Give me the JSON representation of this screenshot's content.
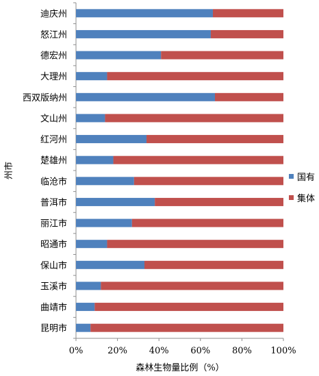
{
  "chart_data": {
    "type": "bar",
    "orientation": "horizontal",
    "stacked": "percent",
    "xlabel": "森林生物量比例（%）",
    "ylabel": "州市",
    "xlim": [
      0,
      100
    ],
    "x_ticks": [
      "0%",
      "20%",
      "40%",
      "60%",
      "80%",
      "100%"
    ],
    "grid": false,
    "legend_position": "right",
    "categories": [
      "迪庆州",
      "怒江州",
      "德宏州",
      "大理州",
      "西双版纳州",
      "文山州",
      "红河州",
      "楚雄州",
      "临沧市",
      "普洱市",
      "丽江市",
      "昭通市",
      "保山市",
      "玉溪市",
      "曲靖市",
      "昆明市"
    ],
    "series": [
      {
        "name": "国有",
        "color": "#4f81bd",
        "values": [
          66,
          65,
          41,
          15,
          67,
          14,
          34,
          18,
          28,
          38,
          27,
          15,
          33,
          12,
          9,
          7
        ]
      },
      {
        "name": "集体",
        "color": "#c0504d",
        "values": [
          34,
          35,
          59,
          85,
          33,
          86,
          66,
          82,
          72,
          62,
          73,
          85,
          67,
          88,
          91,
          93
        ]
      }
    ]
  }
}
